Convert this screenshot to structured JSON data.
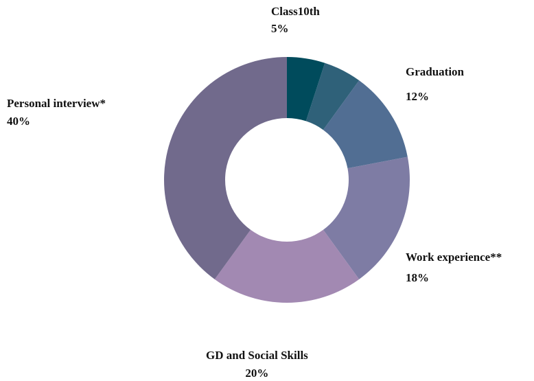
{
  "chart_data": {
    "type": "pie",
    "variant": "donut",
    "title": "",
    "slices": [
      {
        "label": "Class10th",
        "value": 5,
        "value_label": "5%",
        "color": "#004b5c"
      },
      {
        "label": "",
        "value": 5,
        "value_label": "",
        "color": "#2f6179"
      },
      {
        "label": "Graduation",
        "value": 12,
        "value_label": "12%",
        "color": "#516e93"
      },
      {
        "label": "Work experience**",
        "value": 18,
        "value_label": "18%",
        "color": "#7e7ca4"
      },
      {
        "label": "GD and Social Skills",
        "value": 20,
        "value_label": "20%",
        "color": "#a289b2"
      },
      {
        "label": "Personal interview*",
        "value": 40,
        "value_label": "40%",
        "color": "#716a8c"
      }
    ],
    "legend": "none",
    "start_angle": "12 o'clock",
    "direction": "clockwise"
  }
}
